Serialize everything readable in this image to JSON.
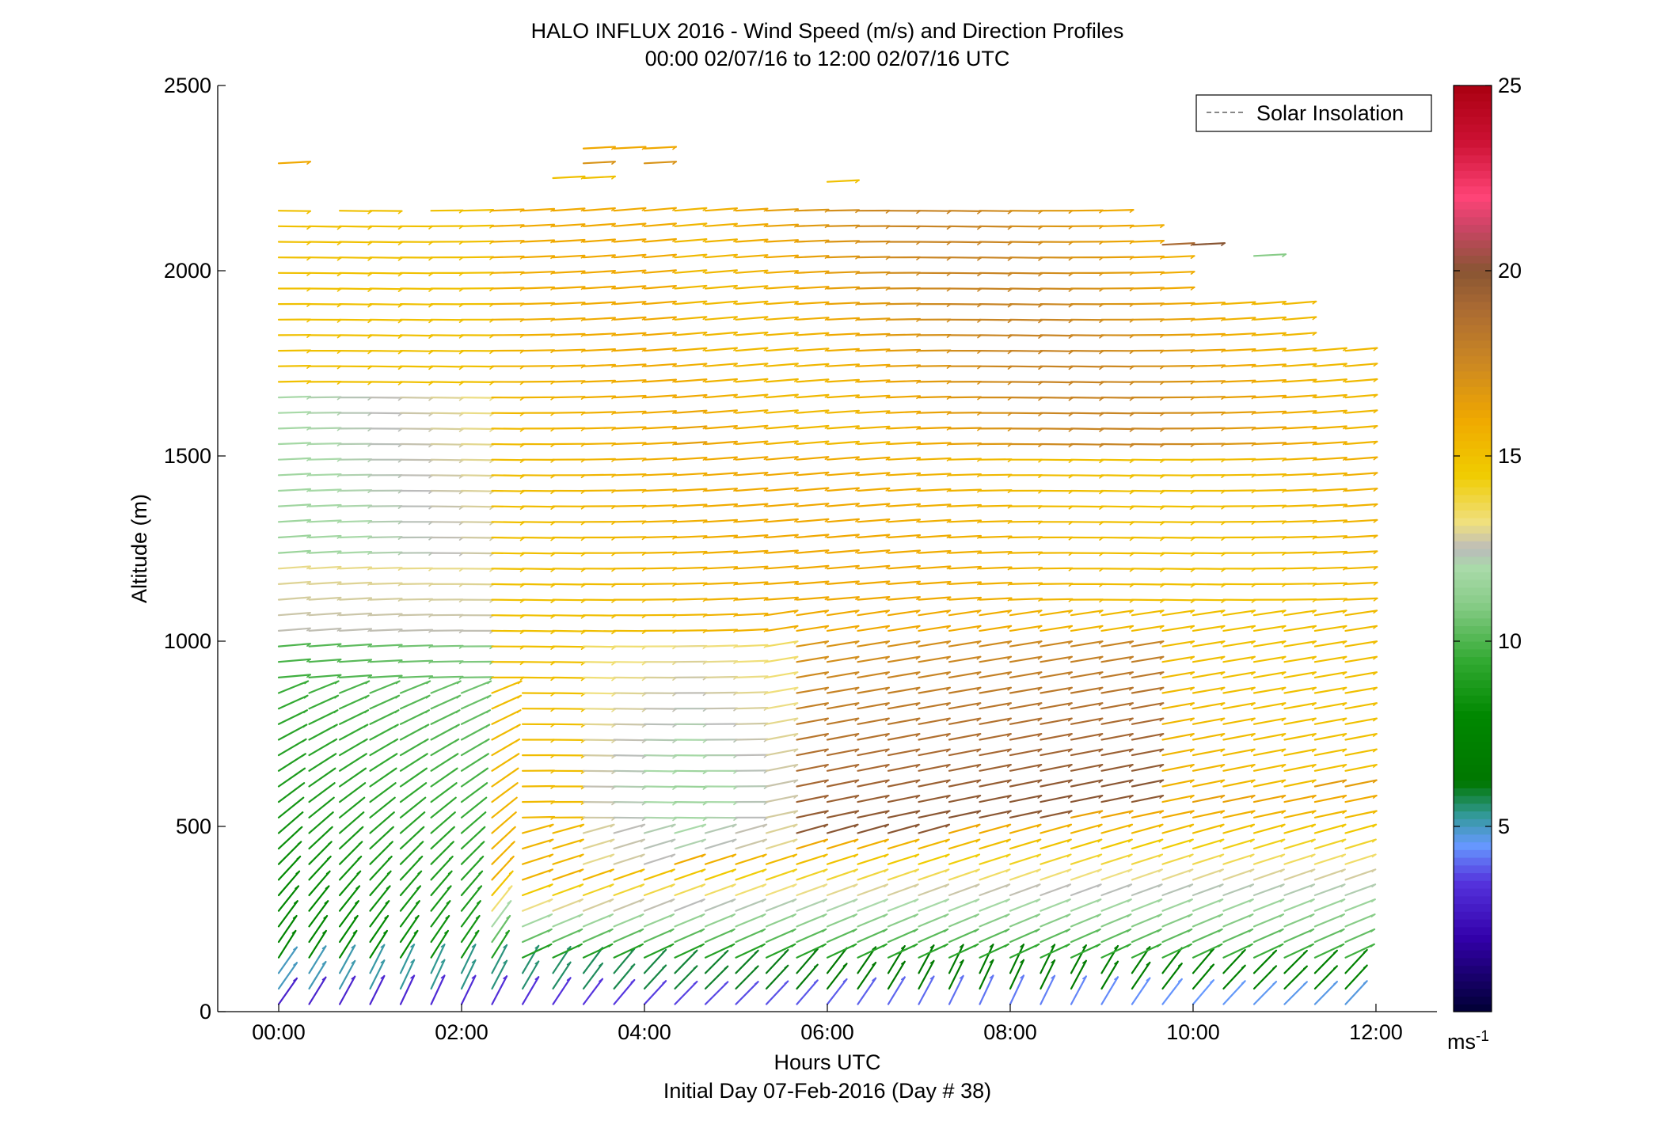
{
  "chart_data": {
    "type": "wind-barb-profile",
    "title": "HALO INFLUX 2016 - Wind Speed (m/s) and Direction Profiles",
    "subtitle": "00:00 02/07/16 to 12:00 02/07/16  UTC",
    "xlabel": "Hours UTC",
    "xlabel2": "Initial Day 07-Feb-2016 (Day # 38)",
    "ylabel": "Altitude (m)",
    "xlim": [
      -0.667,
      12.667
    ],
    "ylim": [
      0,
      2500
    ],
    "xticks": [
      0,
      2,
      4,
      6,
      8,
      10,
      12
    ],
    "xtick_labels": [
      "00:00",
      "02:00",
      "04:00",
      "06:00",
      "08:00",
      "10:00",
      "12:00"
    ],
    "yticks": [
      0,
      500,
      1000,
      1500,
      2000,
      2500
    ],
    "ytick_labels": [
      "0",
      "500",
      "1000",
      "1500",
      "2000",
      "2500"
    ],
    "legend": {
      "label": "Solar Insolation",
      "placement": "top-right",
      "line_color": "#888888",
      "line_style": "dashed"
    },
    "colorbar": {
      "min": 0,
      "max": 25,
      "ticks": [
        5,
        10,
        15,
        20,
        25
      ],
      "tick_labels": [
        "5",
        "10",
        "15",
        "20",
        "25"
      ],
      "unit_base": "ms",
      "unit_exp": "-1",
      "stops": [
        {
          "v": 0,
          "c": "#000033"
        },
        {
          "v": 2,
          "c": "#3300aa"
        },
        {
          "v": 3.5,
          "c": "#5533dd"
        },
        {
          "v": 4.5,
          "c": "#6699ff"
        },
        {
          "v": 5.3,
          "c": "#339999"
        },
        {
          "v": 6.2,
          "c": "#007700"
        },
        {
          "v": 8,
          "c": "#008800"
        },
        {
          "v": 9.5,
          "c": "#33aa33"
        },
        {
          "v": 11,
          "c": "#88cc88"
        },
        {
          "v": 12,
          "c": "#aadaaa"
        },
        {
          "v": 12.5,
          "c": "#bbbbbb"
        },
        {
          "v": 13.2,
          "c": "#f0e080"
        },
        {
          "v": 14.5,
          "c": "#f0cc00"
        },
        {
          "v": 16,
          "c": "#f0a800"
        },
        {
          "v": 17.5,
          "c": "#cc8822"
        },
        {
          "v": 19,
          "c": "#aa6a33"
        },
        {
          "v": 20,
          "c": "#885533"
        },
        {
          "v": 21.2,
          "c": "#cc4466"
        },
        {
          "v": 22,
          "c": "#ff4477"
        },
        {
          "v": 23.5,
          "c": "#cc1133"
        },
        {
          "v": 25,
          "c": "#aa0011"
        }
      ]
    },
    "profile_times_h": [
      0.0,
      0.333,
      0.667,
      1.0,
      1.333,
      1.667,
      2.0,
      2.333,
      2.667,
      3.0,
      3.333,
      3.667,
      4.0,
      4.333,
      4.667,
      5.0,
      5.333,
      5.667,
      6.0,
      6.333,
      6.667,
      7.0,
      7.333,
      7.667,
      8.0,
      8.333,
      8.667,
      9.0,
      9.333,
      9.667,
      10.0,
      10.333,
      10.667,
      11.0,
      11.333,
      11.667
    ],
    "profile_top_altitude_m": [
      2170,
      2120,
      2170,
      2170,
      2120,
      2170,
      2170,
      2170,
      2170,
      2170,
      2170,
      2170,
      2170,
      2170,
      2170,
      2170,
      2170,
      2170,
      2170,
      2170,
      2170,
      2170,
      2170,
      2170,
      2170,
      2170,
      2170,
      2170,
      2120,
      2070,
      1950,
      1950,
      1950,
      1950,
      1820,
      1820
    ],
    "range_gate_step_m": 42,
    "isolated_barbs": [
      {
        "t": 0.0,
        "z": 2290,
        "speed": 16
      },
      {
        "t": 3.333,
        "z": 2330,
        "speed": 16
      },
      {
        "t": 3.667,
        "z": 2330,
        "speed": 16
      },
      {
        "t": 4.0,
        "z": 2330,
        "speed": 16
      },
      {
        "t": 3.333,
        "z": 2290,
        "speed": 17
      },
      {
        "t": 4.0,
        "z": 2290,
        "speed": 17
      },
      {
        "t": 3.0,
        "z": 2250,
        "speed": 15
      },
      {
        "t": 3.333,
        "z": 2250,
        "speed": 15
      },
      {
        "t": 6.0,
        "z": 2240,
        "speed": 15
      },
      {
        "t": 9.667,
        "z": 2070,
        "speed": 19
      },
      {
        "t": 10.0,
        "z": 2070,
        "speed": 20
      },
      {
        "t": 10.667,
        "z": 2040,
        "speed": 11
      }
    ]
  }
}
